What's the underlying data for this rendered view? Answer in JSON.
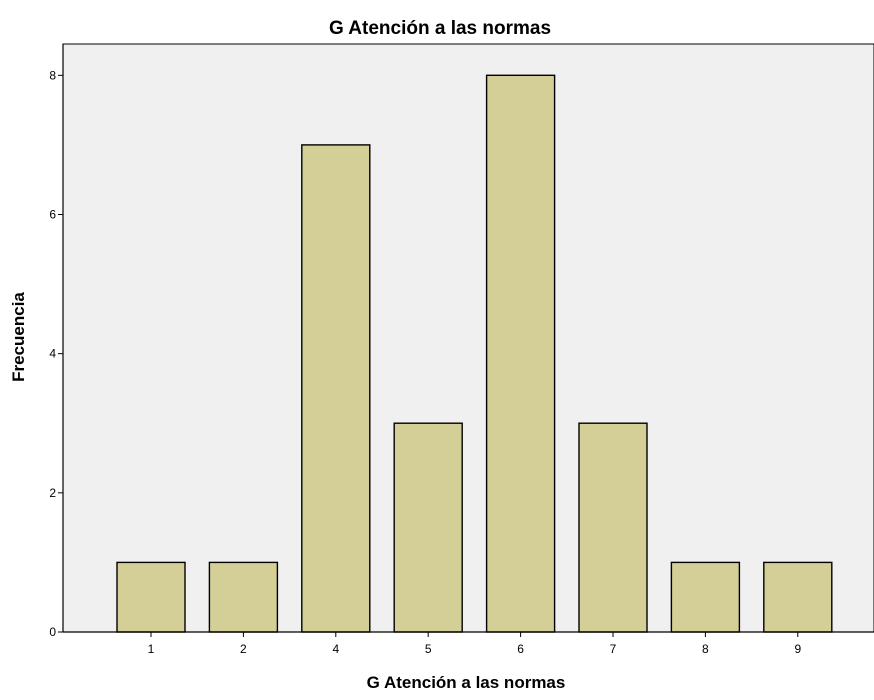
{
  "colors": {
    "plot_background": "#f0f0f0",
    "bar_fill": "#d4cf97",
    "bar_stroke": "#000000",
    "axis": "#000000"
  },
  "chart_data": {
    "type": "bar",
    "title": "G Atención a las normas",
    "xlabel": "G Atención a las normas",
    "ylabel": "Frecuencia",
    "categories": [
      "1",
      "2",
      "4",
      "5",
      "6",
      "7",
      "8",
      "9"
    ],
    "values": [
      1,
      1,
      7,
      3,
      8,
      3,
      1,
      1
    ],
    "ylim": [
      0,
      8.45
    ],
    "yticks": [
      0,
      2,
      4,
      6,
      8
    ],
    "grid": false,
    "legend": "none"
  }
}
